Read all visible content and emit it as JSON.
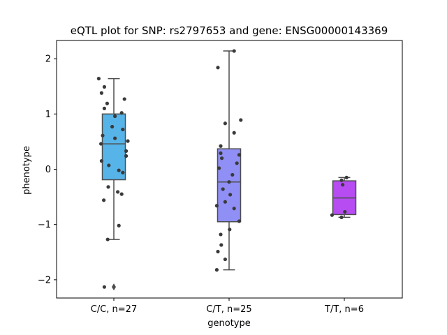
{
  "chart_data": {
    "type": "box",
    "title": "eQTL plot for SNP: rs2797653 and gene: ENSG00000143369",
    "xlabel": "genotype",
    "ylabel": "phenotype",
    "ylim": [
      -2.33,
      2.33
    ],
    "yticks": [
      2,
      1,
      0,
      -1,
      -2
    ],
    "ytick_labels": [
      "2",
      "1",
      "0",
      "−1",
      "−2"
    ],
    "grid": false,
    "legend": "none",
    "categories": [
      "C/C, n=27",
      "C/T, n=25",
      "T/T, n=6"
    ],
    "boxes": [
      {
        "category": "C/C, n=27",
        "color": "#56b4e9",
        "q1": -0.19,
        "median": 0.46,
        "q3": 1.0,
        "whisker_low": -1.27,
        "whisker_high": 1.64,
        "outliers": [
          -2.13
        ],
        "points": [
          [
            -0.27,
            1.64
          ],
          [
            0.19,
            1.27
          ],
          [
            -0.17,
            1.49
          ],
          [
            -0.22,
            1.38
          ],
          [
            -0.12,
            1.19
          ],
          [
            -0.17,
            1.1
          ],
          [
            0.14,
            1.02
          ],
          [
            0.02,
            0.96
          ],
          [
            -0.03,
            0.77
          ],
          [
            0.16,
            0.72
          ],
          [
            -0.2,
            0.61
          ],
          [
            0.02,
            0.56
          ],
          [
            0.25,
            0.51
          ],
          [
            -0.23,
            0.46
          ],
          [
            0.22,
            0.33
          ],
          [
            0.22,
            0.24
          ],
          [
            -0.22,
            0.15
          ],
          [
            -0.09,
            0.07
          ],
          [
            0.09,
            -0.02
          ],
          [
            0.16,
            -0.06
          ],
          [
            -0.1,
            -0.32
          ],
          [
            0.07,
            -0.41
          ],
          [
            0.14,
            -0.45
          ],
          [
            -0.18,
            -0.56
          ],
          [
            0.09,
            -1.02
          ],
          [
            -0.11,
            -1.27
          ],
          [
            -0.17,
            -2.13
          ]
        ]
      },
      {
        "category": "C/T, n=25",
        "color": "#8f8ff5",
        "q1": -0.95,
        "median": -0.23,
        "q3": 0.37,
        "whisker_low": -1.82,
        "whisker_high": 2.14,
        "outliers": [],
        "points": [
          [
            0.09,
            2.14
          ],
          [
            -0.2,
            1.84
          ],
          [
            0.21,
            0.89
          ],
          [
            -0.07,
            0.83
          ],
          [
            0.09,
            0.66
          ],
          [
            -0.15,
            0.42
          ],
          [
            -0.15,
            0.29
          ],
          [
            0.18,
            0.26
          ],
          [
            -0.13,
            0.2
          ],
          [
            0.14,
            0.11
          ],
          [
            -0.18,
            0.02
          ],
          [
            0.06,
            -0.1
          ],
          [
            0.0,
            -0.23
          ],
          [
            -0.11,
            -0.36
          ],
          [
            0.02,
            -0.46
          ],
          [
            -0.07,
            -0.59
          ],
          [
            -0.22,
            -0.66
          ],
          [
            0.09,
            -0.71
          ],
          [
            0.18,
            -0.94
          ],
          [
            0.01,
            -1.09
          ],
          [
            -0.15,
            -1.18
          ],
          [
            -0.14,
            -1.37
          ],
          [
            -0.2,
            -1.49
          ],
          [
            -0.07,
            -1.63
          ],
          [
            -0.22,
            -1.82
          ]
        ]
      },
      {
        "category": "T/T, n=6",
        "color": "#b64cf2",
        "q1": -0.82,
        "median": -0.52,
        "q3": -0.21,
        "whisker_low": -0.87,
        "whisker_high": -0.15,
        "outliers": [],
        "points": [
          [
            0.04,
            -0.15
          ],
          [
            -0.05,
            -0.2
          ],
          [
            -0.03,
            -0.28
          ],
          [
            0.01,
            -0.77
          ],
          [
            -0.22,
            -0.83
          ],
          [
            -0.05,
            -0.87
          ]
        ]
      }
    ]
  }
}
